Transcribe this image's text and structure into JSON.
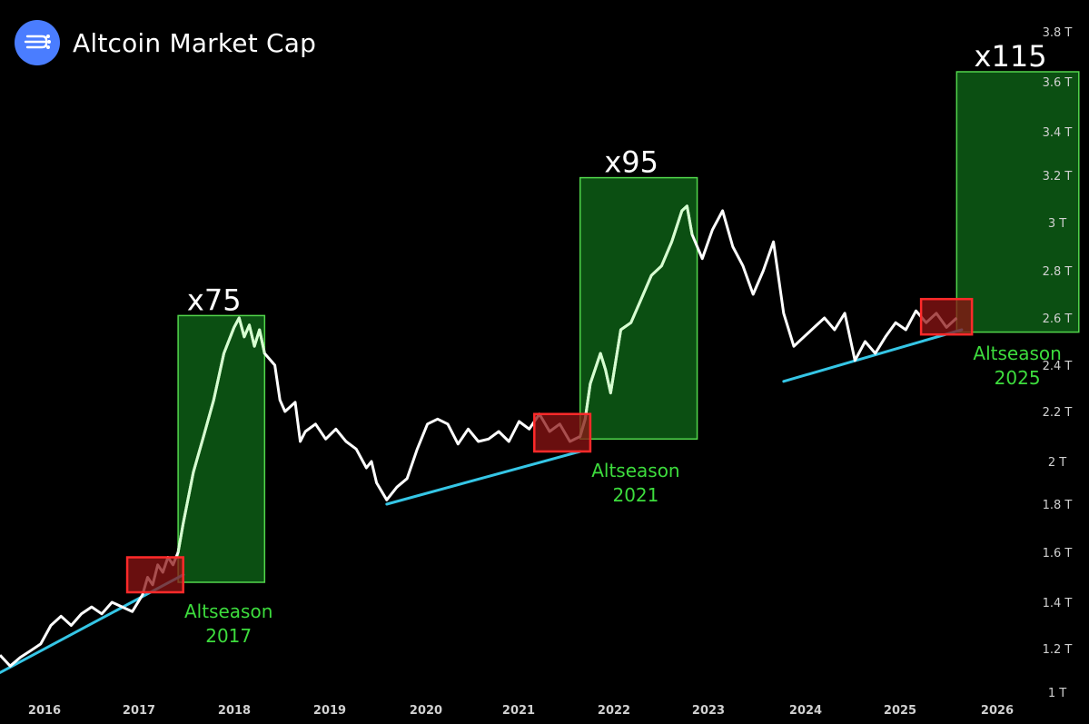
{
  "header": {
    "title": "Altcoin Market Cap",
    "logo_icon": "signal-lines-icon",
    "logo_color": "#4a7dff"
  },
  "colors": {
    "background": "#000000",
    "price_line": "#ffffff",
    "highlight_price_line": "#d6ffd0",
    "support_line": "#35c6e6",
    "box_fill": "#0b4f12",
    "box_stroke": "#52d64c",
    "accumulation_fill": "#8c1414",
    "accumulation_stroke": "#ff2a2a",
    "label_green": "#3ddc3d",
    "axis_text": "#d0d0d0"
  },
  "chart_data": {
    "type": "line",
    "title": "Altcoin Market Cap",
    "xlabel": "",
    "ylabel": "",
    "x_ticks": [
      "2016",
      "2017",
      "2018",
      "2019",
      "2020",
      "2021",
      "2022",
      "2023",
      "2024",
      "2025",
      "2026"
    ],
    "y_ticks": [
      "1 T",
      "1.2 T",
      "1.4 T",
      "1.6 T",
      "1.8 T",
      "2 T",
      "2.2 T",
      "2.4 T",
      "2.6 T",
      "2.8 T",
      "3 T",
      "3.2 T",
      "3.4 T",
      "3.6 T",
      "3.8 T"
    ],
    "y_tick_values": [
      1.0,
      1.2,
      1.4,
      1.6,
      1.8,
      2.0,
      2.2,
      2.4,
      2.6,
      2.8,
      3.0,
      3.2,
      3.4,
      3.6,
      3.8
    ],
    "xlim": [
      2015.6,
      2026.3
    ],
    "ylim": [
      0.97,
      3.9
    ],
    "grid": false,
    "series": [
      {
        "points": [
          [
            2015.6,
            1.17
          ],
          [
            2015.7,
            1.12
          ],
          [
            2015.8,
            1.16
          ],
          [
            2015.9,
            1.19
          ],
          [
            2016.0,
            1.22
          ],
          [
            2016.1,
            1.3
          ],
          [
            2016.2,
            1.34
          ],
          [
            2016.3,
            1.3
          ],
          [
            2016.4,
            1.35
          ],
          [
            2016.5,
            1.38
          ],
          [
            2016.6,
            1.35
          ],
          [
            2016.7,
            1.4
          ],
          [
            2016.8,
            1.38
          ],
          [
            2016.9,
            1.36
          ],
          [
            2017.0,
            1.43
          ],
          [
            2017.05,
            1.5
          ],
          [
            2017.1,
            1.47
          ],
          [
            2017.15,
            1.55
          ],
          [
            2017.2,
            1.52
          ],
          [
            2017.25,
            1.58
          ],
          [
            2017.3,
            1.55
          ],
          [
            2017.35,
            1.6
          ],
          [
            2017.4,
            1.72
          ],
          [
            2017.5,
            1.95
          ],
          [
            2017.6,
            2.1
          ],
          [
            2017.7,
            2.25
          ],
          [
            2017.8,
            2.45
          ],
          [
            2017.9,
            2.56
          ],
          [
            2017.95,
            2.6
          ],
          [
            2018.0,
            2.52
          ],
          [
            2018.05,
            2.57
          ],
          [
            2018.1,
            2.48
          ],
          [
            2018.15,
            2.55
          ],
          [
            2018.2,
            2.45
          ],
          [
            2018.3,
            2.4
          ],
          [
            2018.35,
            2.25
          ],
          [
            2018.4,
            2.2
          ],
          [
            2018.5,
            2.24
          ],
          [
            2018.55,
            2.08
          ],
          [
            2018.6,
            2.12
          ],
          [
            2018.7,
            2.15
          ],
          [
            2018.8,
            2.09
          ],
          [
            2018.9,
            2.13
          ],
          [
            2019.0,
            2.08
          ],
          [
            2019.1,
            2.05
          ],
          [
            2019.2,
            1.97
          ],
          [
            2019.25,
            2.0
          ],
          [
            2019.3,
            1.9
          ],
          [
            2019.4,
            1.82
          ],
          [
            2019.5,
            1.88
          ],
          [
            2019.6,
            1.92
          ],
          [
            2019.7,
            2.05
          ],
          [
            2019.8,
            2.15
          ],
          [
            2019.9,
            2.17
          ],
          [
            2020.0,
            2.15
          ],
          [
            2020.1,
            2.07
          ],
          [
            2020.2,
            2.13
          ],
          [
            2020.3,
            2.08
          ],
          [
            2020.4,
            2.09
          ],
          [
            2020.5,
            2.12
          ],
          [
            2020.6,
            2.08
          ],
          [
            2020.7,
            2.16
          ],
          [
            2020.8,
            2.13
          ],
          [
            2020.9,
            2.19
          ],
          [
            2021.0,
            2.12
          ],
          [
            2021.1,
            2.15
          ],
          [
            2021.2,
            2.08
          ],
          [
            2021.3,
            2.1
          ],
          [
            2021.35,
            2.17
          ],
          [
            2021.4,
            2.32
          ],
          [
            2021.5,
            2.45
          ],
          [
            2021.55,
            2.38
          ],
          [
            2021.6,
            2.28
          ],
          [
            2021.7,
            2.55
          ],
          [
            2021.8,
            2.58
          ],
          [
            2021.9,
            2.68
          ],
          [
            2022.0,
            2.78
          ],
          [
            2022.1,
            2.82
          ],
          [
            2022.2,
            2.92
          ],
          [
            2022.3,
            3.05
          ],
          [
            2022.35,
            3.07
          ],
          [
            2022.4,
            2.95
          ],
          [
            2022.5,
            2.85
          ],
          [
            2022.6,
            2.97
          ],
          [
            2022.7,
            3.05
          ],
          [
            2022.8,
            2.9
          ],
          [
            2022.9,
            2.82
          ],
          [
            2023.0,
            2.7
          ],
          [
            2023.1,
            2.8
          ],
          [
            2023.2,
            2.92
          ],
          [
            2023.3,
            2.62
          ],
          [
            2023.4,
            2.48
          ],
          [
            2023.5,
            2.52
          ],
          [
            2023.6,
            2.56
          ],
          [
            2023.7,
            2.6
          ],
          [
            2023.8,
            2.55
          ],
          [
            2023.9,
            2.62
          ],
          [
            2024.0,
            2.42
          ],
          [
            2024.1,
            2.5
          ],
          [
            2024.2,
            2.45
          ],
          [
            2024.3,
            2.52
          ],
          [
            2024.4,
            2.58
          ],
          [
            2024.5,
            2.55
          ],
          [
            2024.6,
            2.63
          ],
          [
            2024.7,
            2.58
          ],
          [
            2024.8,
            2.62
          ],
          [
            2024.9,
            2.56
          ],
          [
            2025.0,
            2.6
          ]
        ]
      }
    ],
    "trendlines": [
      {
        "from": [
          2015.6,
          1.09
        ],
        "to": [
          2017.4,
          1.51
        ]
      },
      {
        "from": [
          2019.4,
          1.8
        ],
        "to": [
          2021.3,
          2.04
        ]
      },
      {
        "from": [
          2023.3,
          2.33
        ],
        "to": [
          2025.05,
          2.55
        ]
      }
    ],
    "highlights": [
      {
        "label": "x75",
        "caption": [
          "Altseason",
          "2017"
        ],
        "x_range": [
          2017.35,
          2018.2
        ],
        "y_range": [
          1.48,
          2.61
        ],
        "accum_x_range": [
          2016.85,
          2017.4
        ],
        "accum_y_range": [
          1.44,
          1.58
        ]
      },
      {
        "label": "x95",
        "caption": [
          "Altseason",
          "2021"
        ],
        "x_range": [
          2021.3,
          2022.45
        ],
        "y_range": [
          2.09,
          3.19
        ],
        "accum_x_range": [
          2020.85,
          2021.4
        ],
        "accum_y_range": [
          2.04,
          2.19
        ]
      },
      {
        "label": "x115",
        "caption": [
          "Altseason",
          "2025"
        ],
        "x_range": [
          2025.0,
          2026.2
        ],
        "y_range": [
          2.54,
          3.64
        ],
        "accum_x_range": [
          2024.65,
          2025.15
        ],
        "accum_y_range": [
          2.53,
          2.68
        ]
      }
    ]
  }
}
